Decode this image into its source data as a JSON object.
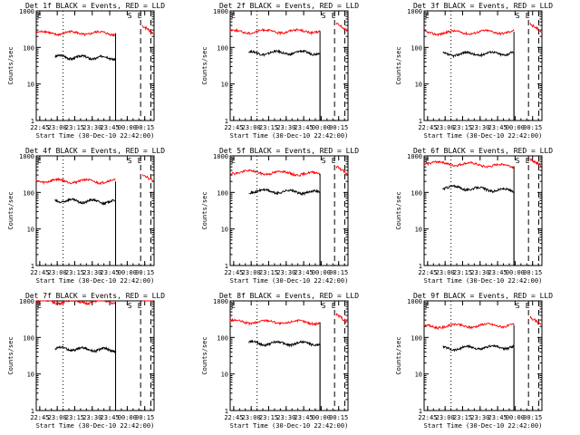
{
  "figure": {
    "xlabel": "Start Time (30-Dec-10 22:42:00)",
    "ylabel": "Counts/sec",
    "xticks": [
      "22:45",
      "23:00",
      "23:15",
      "23:30",
      "23:45",
      "00:00",
      "00:15"
    ],
    "yticks": [
      "1",
      "10",
      "100",
      "1000"
    ],
    "event_markers": [
      "E",
      "S",
      "E"
    ],
    "colors": {
      "events": "#000000",
      "lld": "#ff0000"
    }
  },
  "chart_data": [
    {
      "type": "line",
      "title": "Det 1f BLACK = Events, RED = LLD",
      "x_range": [
        "22:42",
        "00:23"
      ],
      "ylim": [
        1,
        1000
      ],
      "log_y": true,
      "series": [
        {
          "name": "Events",
          "color": "#000000",
          "x": [
            "22:58",
            "23:50"
          ],
          "values": [
            55,
            52
          ]
        },
        {
          "name": "LLD",
          "color": "#ff0000",
          "x": [
            "22:42",
            "23:50"
          ],
          "values": [
            250,
            245
          ]
        }
      ]
    },
    {
      "type": "line",
      "title": "Det 2f BLACK = Events, RED = LLD",
      "x_range": [
        "22:42",
        "00:23"
      ],
      "ylim": [
        1,
        1000
      ],
      "log_y": true,
      "series": [
        {
          "name": "Events",
          "color": "#000000",
          "x": [
            "22:58",
            "23:59"
          ],
          "values": [
            70,
            73
          ]
        },
        {
          "name": "LLD",
          "color": "#ff0000",
          "x": [
            "22:42",
            "23:59"
          ],
          "values": [
            270,
            280
          ]
        }
      ]
    },
    {
      "type": "line",
      "title": "Det 3f BLACK = Events, RED = LLD",
      "x_range": [
        "22:42",
        "00:23"
      ],
      "ylim": [
        1,
        1000
      ],
      "log_y": true,
      "series": [
        {
          "name": "Events",
          "color": "#000000",
          "x": [
            "22:58",
            "23:59"
          ],
          "values": [
            65,
            70
          ]
        },
        {
          "name": "LLD",
          "color": "#ff0000",
          "x": [
            "22:42",
            "23:59"
          ],
          "values": [
            250,
            270
          ]
        }
      ]
    },
    {
      "type": "line",
      "title": "Det 4f BLACK = Events, RED = LLD",
      "x_range": [
        "22:42",
        "00:23"
      ],
      "ylim": [
        1,
        1000
      ],
      "log_y": true,
      "series": [
        {
          "name": "Events",
          "color": "#000000",
          "x": [
            "22:58",
            "23:50"
          ],
          "values": [
            60,
            55
          ]
        },
        {
          "name": "LLD",
          "color": "#ff0000",
          "x": [
            "22:42",
            "23:50"
          ],
          "values": [
            210,
            200
          ]
        }
      ]
    },
    {
      "type": "line",
      "title": "Det 5f BLACK = Events, RED = LLD",
      "x_range": [
        "22:42",
        "00:23"
      ],
      "ylim": [
        1,
        1000
      ],
      "log_y": true,
      "series": [
        {
          "name": "Events",
          "color": "#000000",
          "x": [
            "22:58",
            "23:59"
          ],
          "values": [
            110,
            100
          ]
        },
        {
          "name": "LLD",
          "color": "#ff0000",
          "x": [
            "22:42",
            "23:59"
          ],
          "values": [
            370,
            320
          ]
        }
      ]
    },
    {
      "type": "line",
      "title": "Det 6f BLACK = Events, RED = LLD",
      "x_range": [
        "22:42",
        "00:23"
      ],
      "ylim": [
        1,
        1000
      ],
      "log_y": true,
      "series": [
        {
          "name": "Events",
          "color": "#000000",
          "x": [
            "22:58",
            "23:59"
          ],
          "values": [
            140,
            110
          ]
        },
        {
          "name": "LLD",
          "color": "#ff0000",
          "x": [
            "22:42",
            "23:59"
          ],
          "values": [
            650,
            520
          ]
        }
      ]
    },
    {
      "type": "line",
      "title": "Det 7f BLACK = Events, RED = LLD",
      "x_range": [
        "22:42",
        "00:23"
      ],
      "ylim": [
        1,
        1000
      ],
      "log_y": true,
      "series": [
        {
          "name": "Events",
          "color": "#000000",
          "x": [
            "22:58",
            "23:50"
          ],
          "values": [
            50,
            45
          ]
        },
        {
          "name": "LLD",
          "color": "#ff0000",
          "x": [
            "22:42",
            "23:50"
          ],
          "values": [
            950,
            950
          ]
        }
      ]
    },
    {
      "type": "line",
      "title": "Det 8f BLACK = Events, RED = LLD",
      "x_range": [
        "22:42",
        "00:23"
      ],
      "ylim": [
        1,
        1000
      ],
      "log_y": true,
      "series": [
        {
          "name": "Events",
          "color": "#000000",
          "x": [
            "22:58",
            "23:59"
          ],
          "values": [
            70,
            68
          ]
        },
        {
          "name": "LLD",
          "color": "#ff0000",
          "x": [
            "22:42",
            "23:59"
          ],
          "values": [
            270,
            260
          ]
        }
      ]
    },
    {
      "type": "line",
      "title": "Det 9f BLACK = Events, RED = LLD",
      "x_range": [
        "22:42",
        "00:23"
      ],
      "ylim": [
        1,
        1000
      ],
      "log_y": true,
      "series": [
        {
          "name": "Events",
          "color": "#000000",
          "x": [
            "22:58",
            "23:59"
          ],
          "values": [
            50,
            55
          ]
        },
        {
          "name": "LLD",
          "color": "#ff0000",
          "x": [
            "22:42",
            "23:59"
          ],
          "values": [
            200,
            220
          ]
        }
      ]
    }
  ]
}
